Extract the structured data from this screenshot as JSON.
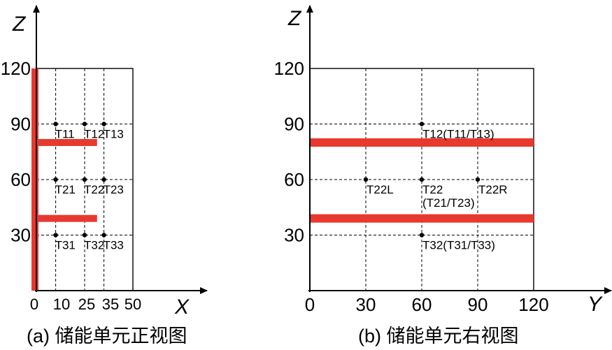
{
  "figure_a": {
    "caption": "(a) 储能单元正视图",
    "x_axis_name": "X",
    "z_axis_name": "Z",
    "x_ticks": [
      "0",
      "10",
      "25",
      "35",
      "50"
    ],
    "z_ticks": [
      "120",
      "90",
      "60",
      "30"
    ],
    "points": [
      {
        "label": "T11",
        "x": 10,
        "z": 90
      },
      {
        "label": "T12",
        "x": 25,
        "z": 90
      },
      {
        "label": "T13",
        "x": 35,
        "z": 90
      },
      {
        "label": "T21",
        "x": 10,
        "z": 60
      },
      {
        "label": "T22",
        "x": 25,
        "z": 60
      },
      {
        "label": "T23",
        "x": 35,
        "z": 60
      },
      {
        "label": "T31",
        "x": 10,
        "z": 30
      },
      {
        "label": "T32",
        "x": 25,
        "z": 30
      },
      {
        "label": "T33",
        "x": 35,
        "z": 30
      }
    ],
    "heaters": [
      {
        "orientation": "vertical",
        "x": 0,
        "z_from": 0,
        "z_to": 120
      },
      {
        "orientation": "horizontal",
        "z": 80,
        "x_from": 0,
        "x_to": 30
      },
      {
        "orientation": "horizontal",
        "z": 39,
        "x_from": 0,
        "x_to": 30
      }
    ]
  },
  "figure_b": {
    "caption": "(b) 储能单元右视图",
    "y_axis_name": "Y",
    "z_axis_name": "Z",
    "y_ticks": [
      "0",
      "30",
      "60",
      "90",
      "120"
    ],
    "z_ticks": [
      "120",
      "90",
      "60",
      "30"
    ],
    "points": [
      {
        "label": "T12(T11/T13)",
        "y": 60,
        "z": 90
      },
      {
        "label": "T22L",
        "y": 30,
        "z": 60
      },
      {
        "label": "T22",
        "label2": "(T21/T23)",
        "y": 60,
        "z": 60
      },
      {
        "label": "T22R",
        "y": 90,
        "z": 60
      },
      {
        "label": "T32(T31/T33)",
        "y": 60,
        "z": 30
      }
    ],
    "heaters": [
      {
        "orientation": "horizontal",
        "z": 80,
        "y_from": 0,
        "y_to": 120
      },
      {
        "orientation": "horizontal",
        "z": 39,
        "y_from": 0,
        "y_to": 120
      }
    ]
  },
  "colors": {
    "heater": "#e8392f",
    "line": "#000000"
  }
}
